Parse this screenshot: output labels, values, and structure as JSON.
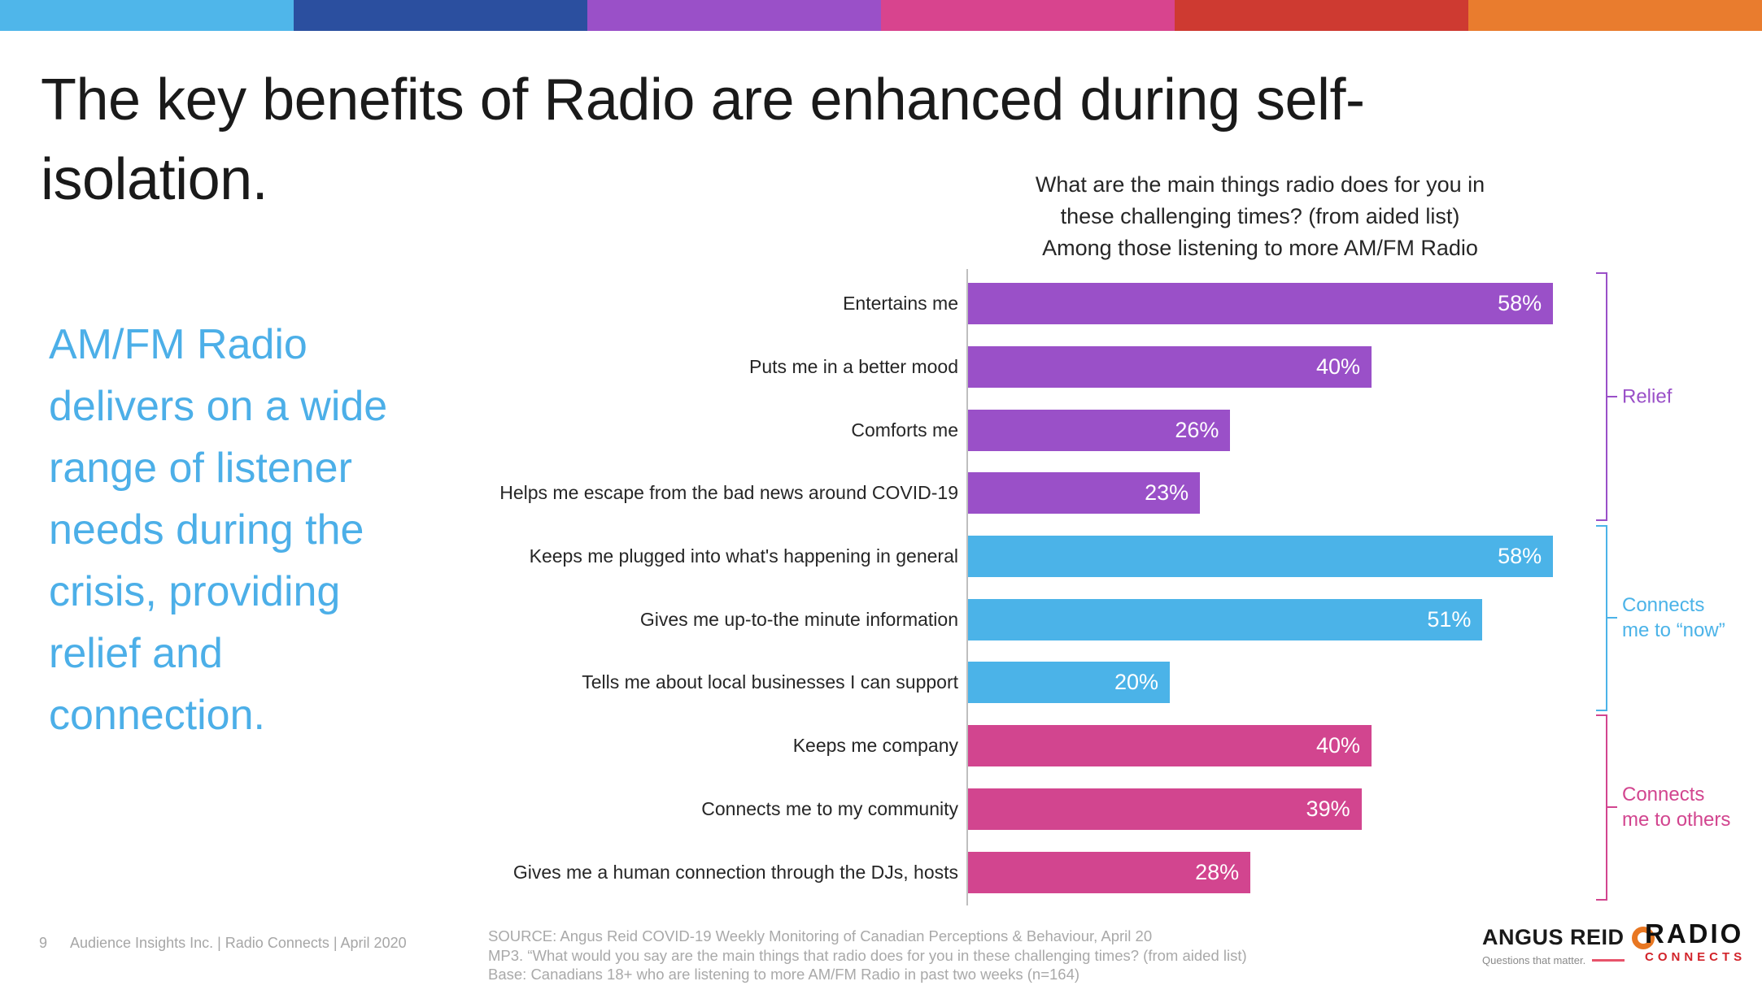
{
  "banner": {
    "segments": [
      "#4FB6EA",
      "#2B4F9F",
      "#9A50C8",
      "#D8448E",
      "#CE3A31",
      "#E97C2E"
    ]
  },
  "title_lines": [
    "The key benefits of Radio are enhanced during self-",
    "isolation."
  ],
  "lede_lines": [
    "AM/FM Radio",
    "delivers on a wide",
    "range of listener",
    "needs during the",
    "crisis, providing",
    "relief and",
    "connection."
  ],
  "lede_color": "#4CAFE8",
  "chart_data": {
    "type": "bar",
    "orientation": "horizontal",
    "title_lines": [
      "What are the main things radio does for you in",
      "these challenging times? (from aided list)",
      "Among those listening to more AM/FM Radio"
    ],
    "title": "What are the main things radio does for you in these challenging times? (from aided list) Among those listening to more AM/FM Radio",
    "categories": [
      "Entertains me",
      "Puts me in a better mood",
      "Comforts me",
      "Helps me escape from the bad news around COVID-19",
      "Keeps me plugged into what's happening in general",
      "Gives me up-to-the minute information",
      "Tells me about local businesses I can support",
      "Keeps me company",
      "Connects me to my community",
      "Gives me a human connection through the DJs, hosts"
    ],
    "values": [
      58,
      40,
      26,
      23,
      58,
      51,
      20,
      40,
      39,
      28
    ],
    "unit": "%",
    "xlim": [
      0,
      64
    ],
    "xlabel": "",
    "ylabel": "",
    "grid": false,
    "legend": false,
    "value_labels_inside": true,
    "groups": [
      {
        "label_lines": [
          "Relief"
        ],
        "color": "#9A50C8",
        "start": 0,
        "end": 3
      },
      {
        "label_lines": [
          "Connects",
          "me to “now”"
        ],
        "color": "#4BB3E8",
        "start": 4,
        "end": 6
      },
      {
        "label_lines": [
          "Connects",
          "me to others"
        ],
        "color": "#D2458F",
        "start": 7,
        "end": 9
      }
    ]
  },
  "footer": {
    "page": "9",
    "credit": "Audience Insights Inc. | Radio Connects | April 2020"
  },
  "source_lines": [
    "SOURCE: Angus Reid COVID-19 Weekly Monitoring of Canadian Perceptions & Behaviour, April 20",
    "MP3. “What would you say are the main things that radio does for you in these challenging times? (from aided list)",
    "Base: Canadians 18+ who are listening to more AM/FM Radio in past two weeks (n=164)"
  ],
  "logos": {
    "angus_reid": {
      "name": "ANGUS REID",
      "tagline": "Questions that matter."
    },
    "radio_connects": {
      "word": "RADIO",
      "sub": "CONNECTS"
    }
  }
}
